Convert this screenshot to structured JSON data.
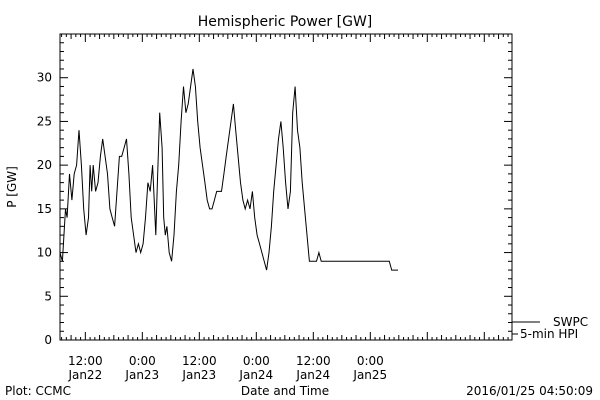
{
  "chart_data": {
    "type": "line",
    "title": "Hemispheric Power [GW]",
    "xlabel": "Date and Time",
    "ylabel": "P [GW]",
    "ylim": [
      0,
      35
    ],
    "xlim": [
      "2016-01-21 06:40",
      "2016-01-25 05:50"
    ],
    "yticks": [
      0,
      5,
      10,
      15,
      20,
      25,
      30
    ],
    "xticks": [
      {
        "at": "2016-01-21 12:00",
        "time": "12:00",
        "date": "Jan22"
      },
      {
        "at": "2016-01-22 00:00",
        "time": "0:00",
        "date": "Jan23"
      },
      {
        "at": "2016-01-22 12:00",
        "time": "12:00",
        "date": "Jan23"
      },
      {
        "at": "2016-01-23 00:00",
        "time": "0:00",
        "date": "Jan24"
      },
      {
        "at": "2016-01-23 12:00",
        "time": "12:00",
        "date": "Jan24"
      },
      {
        "at": "2016-01-24 00:00",
        "time": "0:00",
        "date": "Jan25"
      }
    ],
    "grid": false,
    "series": [
      {
        "name": "5-min HPI",
        "points": [
          [
            "2016-01-21 06:40",
            10
          ],
          [
            "2016-01-21 07:10",
            9
          ],
          [
            "2016-01-21 07:50",
            15
          ],
          [
            "2016-01-21 08:10",
            14
          ],
          [
            "2016-01-21 08:40",
            19
          ],
          [
            "2016-01-21 09:10",
            16
          ],
          [
            "2016-01-21 09:40",
            19
          ],
          [
            "2016-01-21 10:10",
            20
          ],
          [
            "2016-01-21 10:40",
            24
          ],
          [
            "2016-01-21 11:10",
            20
          ],
          [
            "2016-01-21 11:40",
            15
          ],
          [
            "2016-01-21 12:10",
            12
          ],
          [
            "2016-01-21 12:40",
            14
          ],
          [
            "2016-01-21 13:00",
            20
          ],
          [
            "2016-01-21 13:20",
            17
          ],
          [
            "2016-01-21 13:40",
            20
          ],
          [
            "2016-01-21 14:10",
            17
          ],
          [
            "2016-01-21 14:40",
            18
          ],
          [
            "2016-01-21 15:10",
            21
          ],
          [
            "2016-01-21 15:40",
            23
          ],
          [
            "2016-01-21 16:10",
            21
          ],
          [
            "2016-01-21 16:40",
            19
          ],
          [
            "2016-01-21 17:10",
            15
          ],
          [
            "2016-01-21 17:40",
            14
          ],
          [
            "2016-01-21 18:10",
            13
          ],
          [
            "2016-01-21 18:40",
            17
          ],
          [
            "2016-01-21 19:10",
            21
          ],
          [
            "2016-01-21 19:40",
            21
          ],
          [
            "2016-01-21 20:10",
            22
          ],
          [
            "2016-01-21 20:40",
            23
          ],
          [
            "2016-01-21 21:10",
            19
          ],
          [
            "2016-01-21 21:40",
            14
          ],
          [
            "2016-01-21 22:10",
            12
          ],
          [
            "2016-01-21 22:40",
            10
          ],
          [
            "2016-01-21 23:10",
            11
          ],
          [
            "2016-01-21 23:40",
            10
          ],
          [
            "2016-01-22 00:10",
            11
          ],
          [
            "2016-01-22 00:40",
            14
          ],
          [
            "2016-01-22 01:10",
            18
          ],
          [
            "2016-01-22 01:40",
            17
          ],
          [
            "2016-01-22 02:10",
            20
          ],
          [
            "2016-01-22 02:30",
            16
          ],
          [
            "2016-01-22 02:50",
            12
          ],
          [
            "2016-01-22 03:10",
            18
          ],
          [
            "2016-01-22 03:40",
            26
          ],
          [
            "2016-01-22 04:10",
            22
          ],
          [
            "2016-01-22 04:30",
            14
          ],
          [
            "2016-01-22 04:50",
            12
          ],
          [
            "2016-01-22 05:10",
            13
          ],
          [
            "2016-01-22 05:40",
            10
          ],
          [
            "2016-01-22 06:10",
            9
          ],
          [
            "2016-01-22 06:40",
            12
          ],
          [
            "2016-01-22 07:10",
            17
          ],
          [
            "2016-01-22 07:40",
            20
          ],
          [
            "2016-01-22 08:10",
            25
          ],
          [
            "2016-01-22 08:40",
            29
          ],
          [
            "2016-01-22 09:10",
            26
          ],
          [
            "2016-01-22 09:40",
            27
          ],
          [
            "2016-01-22 10:10",
            29
          ],
          [
            "2016-01-22 10:40",
            31
          ],
          [
            "2016-01-22 11:10",
            29
          ],
          [
            "2016-01-22 11:40",
            25
          ],
          [
            "2016-01-22 12:10",
            22
          ],
          [
            "2016-01-22 12:40",
            20
          ],
          [
            "2016-01-22 13:10",
            18
          ],
          [
            "2016-01-22 13:40",
            16
          ],
          [
            "2016-01-22 14:10",
            15
          ],
          [
            "2016-01-22 14:40",
            15
          ],
          [
            "2016-01-22 15:10",
            16
          ],
          [
            "2016-01-22 15:40",
            17
          ],
          [
            "2016-01-22 16:10",
            17
          ],
          [
            "2016-01-22 16:40",
            17
          ],
          [
            "2016-01-22 17:10",
            19
          ],
          [
            "2016-01-22 17:40",
            21
          ],
          [
            "2016-01-22 18:10",
            23
          ],
          [
            "2016-01-22 18:40",
            25
          ],
          [
            "2016-01-22 19:10",
            27
          ],
          [
            "2016-01-22 19:40",
            24
          ],
          [
            "2016-01-22 20:10",
            21
          ],
          [
            "2016-01-22 20:40",
            18
          ],
          [
            "2016-01-22 21:10",
            16
          ],
          [
            "2016-01-22 21:40",
            15
          ],
          [
            "2016-01-22 22:10",
            16
          ],
          [
            "2016-01-22 22:40",
            15
          ],
          [
            "2016-01-22 23:10",
            17
          ],
          [
            "2016-01-22 23:40",
            14
          ],
          [
            "2016-01-23 00:10",
            12
          ],
          [
            "2016-01-23 00:40",
            11
          ],
          [
            "2016-01-23 01:10",
            10
          ],
          [
            "2016-01-23 01:40",
            9
          ],
          [
            "2016-01-23 02:10",
            8
          ],
          [
            "2016-01-23 02:40",
            10
          ],
          [
            "2016-01-23 03:10",
            13
          ],
          [
            "2016-01-23 03:40",
            17
          ],
          [
            "2016-01-23 04:10",
            20
          ],
          [
            "2016-01-23 04:40",
            23
          ],
          [
            "2016-01-23 05:10",
            25
          ],
          [
            "2016-01-23 05:40",
            22
          ],
          [
            "2016-01-23 06:10",
            18
          ],
          [
            "2016-01-23 06:40",
            15
          ],
          [
            "2016-01-23 07:10",
            17
          ],
          [
            "2016-01-23 07:40",
            26
          ],
          [
            "2016-01-23 08:10",
            29
          ],
          [
            "2016-01-23 08:40",
            24
          ],
          [
            "2016-01-23 09:10",
            22
          ],
          [
            "2016-01-23 09:40",
            18
          ],
          [
            "2016-01-23 10:10",
            15
          ],
          [
            "2016-01-23 10:40",
            12
          ],
          [
            "2016-01-23 11:10",
            9
          ],
          [
            "2016-01-23 11:40",
            9
          ],
          [
            "2016-01-23 12:10",
            9
          ],
          [
            "2016-01-23 12:40",
            9
          ],
          [
            "2016-01-23 13:10",
            10
          ],
          [
            "2016-01-23 13:40",
            9
          ],
          [
            "2016-01-23 14:10",
            9
          ],
          [
            "2016-01-23 14:40",
            9
          ],
          [
            "2016-01-23 15:10",
            9
          ],
          [
            "2016-01-23 15:40",
            9
          ],
          [
            "2016-01-24 04:00",
            9
          ],
          [
            "2016-01-24 04:30",
            8
          ],
          [
            "2016-01-24 05:50",
            8
          ]
        ]
      }
    ],
    "legend": {
      "placement": "bottom-right",
      "entries": [
        "SWPC",
        "5-min HPI"
      ]
    },
    "footer": {
      "left": "Plot: CCMC",
      "right": "2016/01/25 04:50:09"
    }
  }
}
